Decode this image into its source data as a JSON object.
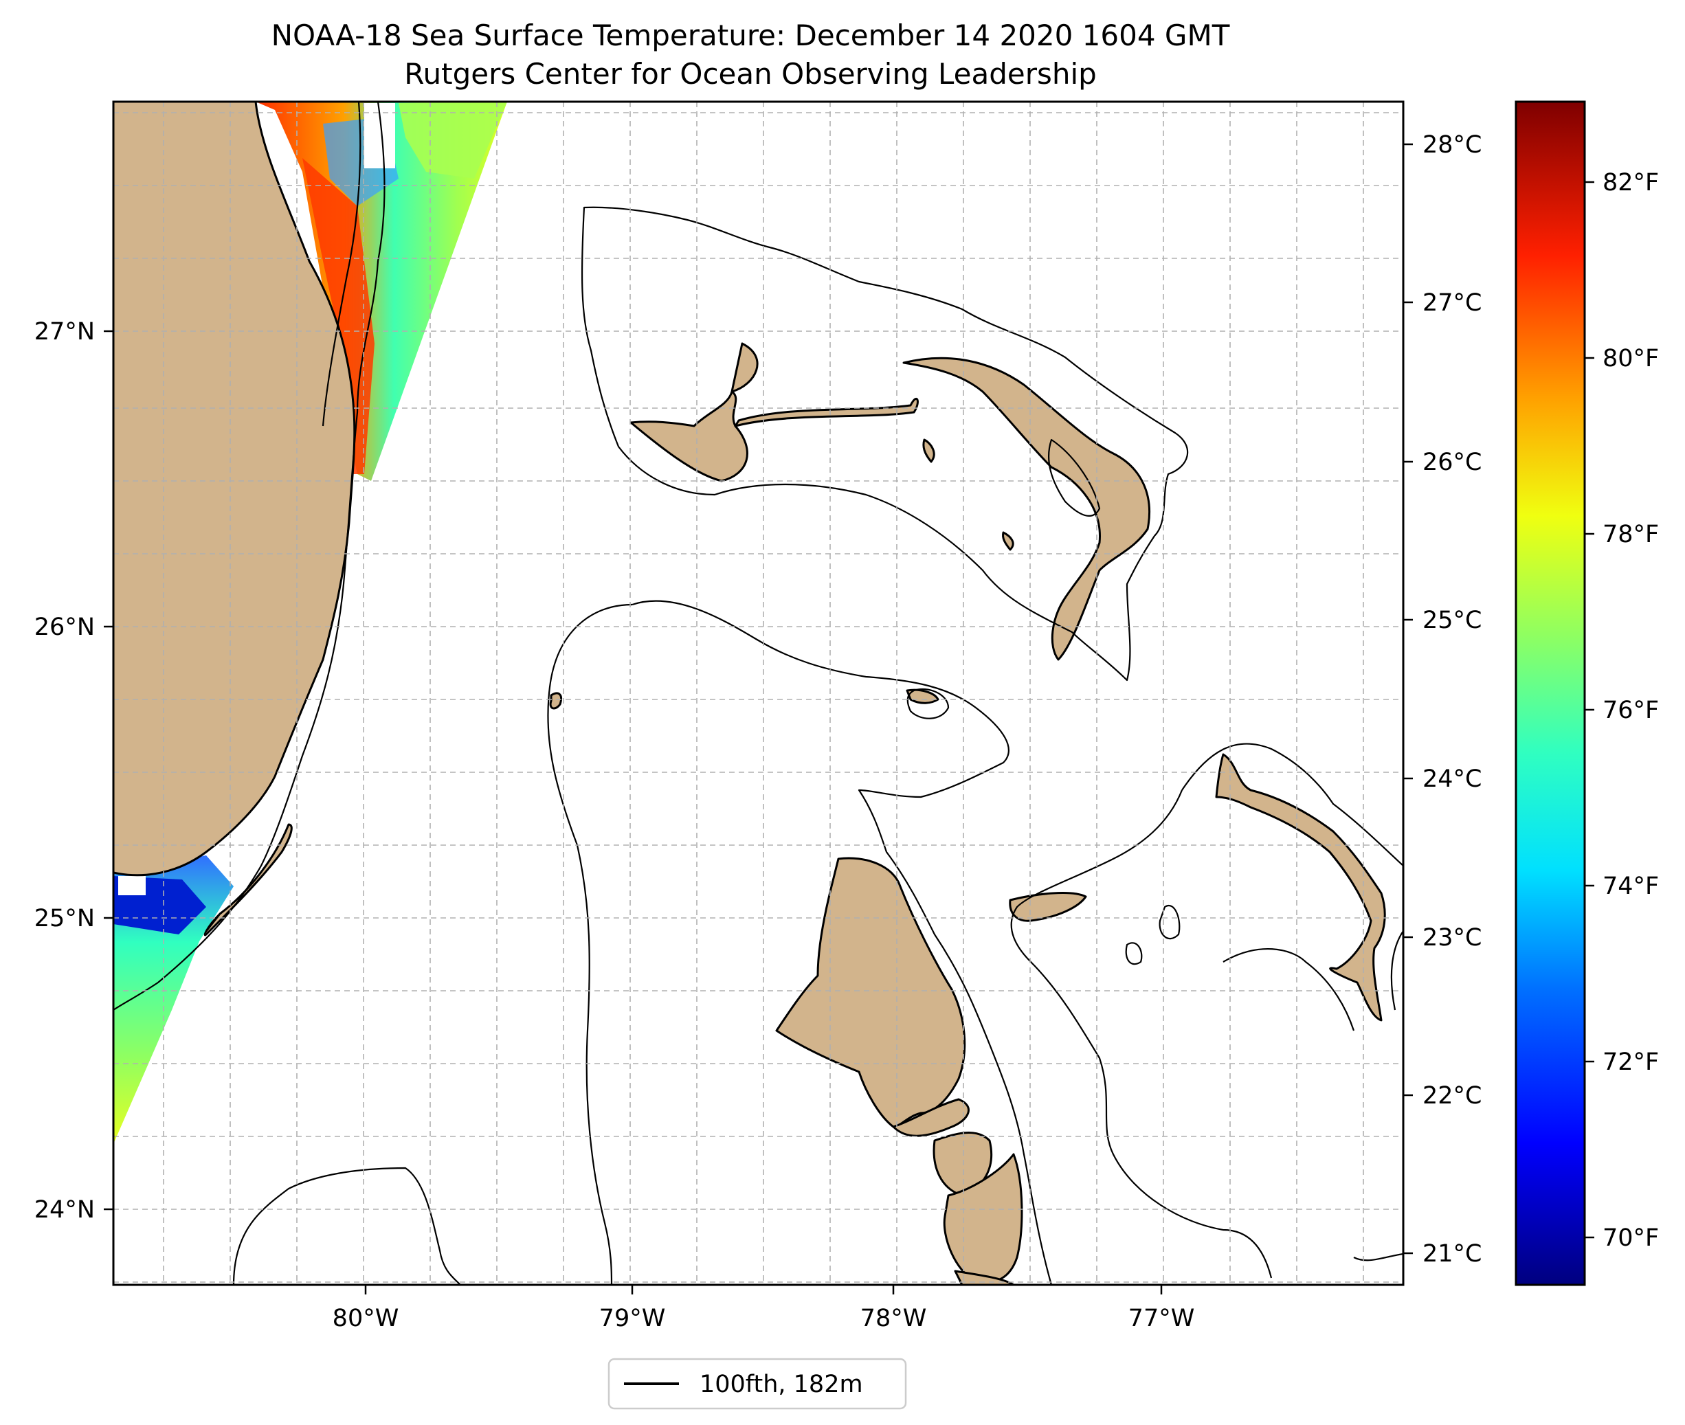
{
  "title": {
    "line1": "NOAA-18 Sea Surface Temperature: December 14 2020 1604 GMT",
    "line2": "Rutgers Center for Ocean Observing Leadership"
  },
  "map": {
    "lon_labels": [
      "80°W",
      "79°W",
      "78°W",
      "77°W"
    ],
    "lat_labels": [
      "27°N",
      "26°N",
      "25°N",
      "24°N"
    ],
    "lon_values": [
      -80,
      -79,
      -78,
      -77
    ],
    "lat_values": [
      27,
      26,
      25,
      24
    ],
    "extent": {
      "lon_min": -80.96,
      "lon_max": -76.1,
      "lat_min": 23.74,
      "lat_max": 27.8
    },
    "land_color": "#d2b48c",
    "grid": true
  },
  "temp_axis": {
    "labels": [
      "28°C",
      "27°C",
      "26°C",
      "25°C",
      "24°C",
      "23°C",
      "22°C",
      "21°C"
    ]
  },
  "colorbar": {
    "colormap": "jet",
    "labels": [
      "82°F",
      "80°F",
      "78°F",
      "76°F",
      "74°F",
      "72°F",
      "70°F"
    ],
    "range_f": [
      69.5,
      83.0
    ]
  },
  "legend": {
    "label": "100fth, 182m",
    "line_color": "#000000"
  }
}
